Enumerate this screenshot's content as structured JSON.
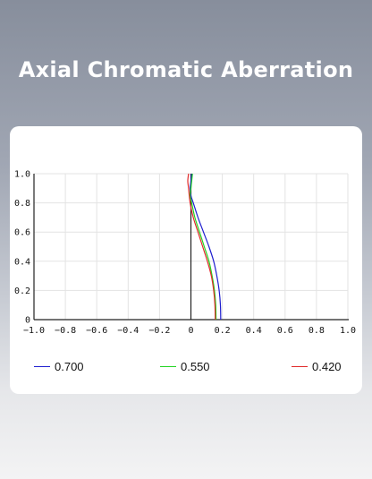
{
  "header": {
    "title": "Axial Chromatic Aberration"
  },
  "chart_data": {
    "type": "line",
    "title": "",
    "xlabel": "",
    "ylabel": "",
    "xlim": [
      -1.0,
      1.0
    ],
    "ylim": [
      0,
      1.0
    ],
    "xticks": [
      "−1.0",
      "−0.8",
      "−0.6",
      "−0.4",
      "−0.2",
      "0",
      "0.2",
      "0.4",
      "0.6",
      "0.8",
      "1.0"
    ],
    "yticks": [
      "0",
      "0.2",
      "0.4",
      "0.6",
      "0.8",
      "1.0"
    ],
    "grid": true,
    "legend_position": "bottom",
    "series": [
      {
        "name": "0.700",
        "color": "#1f1fcf",
        "points": [
          [
            0.19,
            0.0
          ],
          [
            0.188,
            0.1
          ],
          [
            0.18,
            0.2
          ],
          [
            0.165,
            0.3
          ],
          [
            0.145,
            0.4
          ],
          [
            0.115,
            0.5
          ],
          [
            0.08,
            0.6
          ],
          [
            0.045,
            0.7
          ],
          [
            0.015,
            0.8
          ],
          [
            0.0,
            0.85
          ],
          [
            -0.005,
            0.9
          ],
          [
            0.0,
            0.95
          ],
          [
            0.005,
            1.0
          ]
        ]
      },
      {
        "name": "0.550",
        "color": "#22d422",
        "points": [
          [
            0.16,
            0.0
          ],
          [
            0.158,
            0.1
          ],
          [
            0.15,
            0.2
          ],
          [
            0.135,
            0.3
          ],
          [
            0.115,
            0.4
          ],
          [
            0.085,
            0.5
          ],
          [
            0.055,
            0.6
          ],
          [
            0.025,
            0.7
          ],
          [
            0.005,
            0.8
          ],
          [
            -0.005,
            0.85
          ],
          [
            0.0,
            0.9
          ],
          [
            0.005,
            0.95
          ],
          [
            0.01,
            1.0
          ]
        ]
      },
      {
        "name": "0.420",
        "color": "#e02a2a",
        "points": [
          [
            0.155,
            0.0
          ],
          [
            0.153,
            0.1
          ],
          [
            0.145,
            0.2
          ],
          [
            0.13,
            0.3
          ],
          [
            0.105,
            0.4
          ],
          [
            0.075,
            0.5
          ],
          [
            0.045,
            0.6
          ],
          [
            0.015,
            0.7
          ],
          [
            -0.005,
            0.8
          ],
          [
            -0.015,
            0.9
          ],
          [
            -0.02,
            0.95
          ],
          [
            -0.015,
            1.0
          ]
        ]
      }
    ]
  }
}
